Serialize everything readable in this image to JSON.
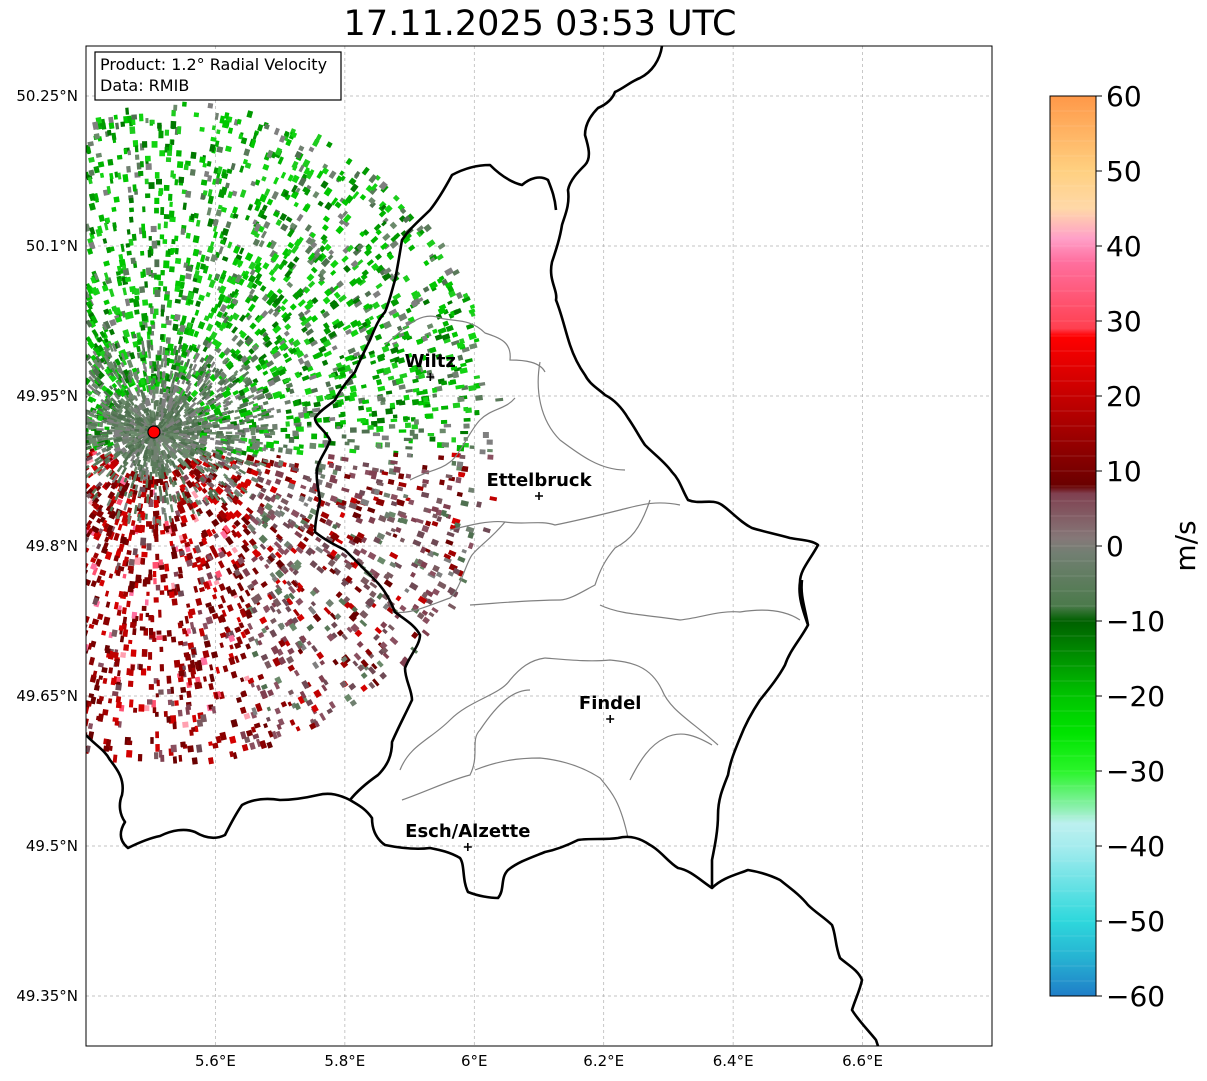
{
  "title": "17.11.2025 03:53 UTC",
  "info_box": {
    "line1": "Product: 1.2° Radial Velocity",
    "line2": "Data: RMIB"
  },
  "map_extent": {
    "lon": [
      5.4,
      6.8
    ],
    "lat": [
      49.3,
      50.3
    ]
  },
  "lat_ticks": [
    {
      "value": 50.25,
      "label": "50.25°N"
    },
    {
      "value": 50.1,
      "label": "50.1°N"
    },
    {
      "value": 49.95,
      "label": "49.95°N"
    },
    {
      "value": 49.8,
      "label": "49.8°N"
    },
    {
      "value": 49.65,
      "label": "49.65°N"
    },
    {
      "value": 49.5,
      "label": "49.5°N"
    },
    {
      "value": 49.35,
      "label": "49.35°N"
    }
  ],
  "lon_ticks": [
    {
      "value": 5.6,
      "label": "5.6°E"
    },
    {
      "value": 5.8,
      "label": "5.8°E"
    },
    {
      "value": 6.0,
      "label": "6°E"
    },
    {
      "value": 6.2,
      "label": "6.2°E"
    },
    {
      "value": 6.4,
      "label": "6.4°E"
    },
    {
      "value": 6.6,
      "label": "6.6°E"
    }
  ],
  "radar_site": {
    "lon": 5.505,
    "lat": 49.914
  },
  "cities": [
    {
      "name": "Wiltz",
      "lon": 5.932,
      "lat": 49.969
    },
    {
      "name": "Ettelbruck",
      "lon": 6.1,
      "lat": 49.85
    },
    {
      "name": "Findel",
      "lon": 6.21,
      "lat": 49.627
    },
    {
      "name": "Esch/Alzette",
      "lon": 5.99,
      "lat": 49.499
    }
  ],
  "colorbar": {
    "label": "m/s",
    "min": -60,
    "max": 60,
    "tick_labels": [
      {
        "value": 60,
        "label": "60"
      },
      {
        "value": 50,
        "label": "50"
      },
      {
        "value": 40,
        "label": "40"
      },
      {
        "value": 30,
        "label": "30"
      },
      {
        "value": 20,
        "label": "20"
      },
      {
        "value": 10,
        "label": "10"
      },
      {
        "value": 0,
        "label": "0"
      },
      {
        "value": -10,
        "label": "−10"
      },
      {
        "value": -20,
        "label": "−20"
      },
      {
        "value": -30,
        "label": "−30"
      },
      {
        "value": -40,
        "label": "−40"
      },
      {
        "value": -50,
        "label": "−50"
      },
      {
        "value": -60,
        "label": "−60"
      }
    ],
    "stops": [
      {
        "value": -60,
        "color": "#1f7ec8"
      },
      {
        "value": -55,
        "color": "#26b2d2"
      },
      {
        "value": -50,
        "color": "#2ed8dc"
      },
      {
        "value": -40,
        "color": "#a6ecee"
      },
      {
        "value": -37,
        "color": "#bcf0ef"
      },
      {
        "value": -35,
        "color": "#8ef0b0"
      },
      {
        "value": -30,
        "color": "#2af52a"
      },
      {
        "value": -25,
        "color": "#00e400"
      },
      {
        "value": -20,
        "color": "#00c400"
      },
      {
        "value": -10,
        "color": "#006000"
      },
      {
        "value": -8,
        "color": "#4b7a4b"
      },
      {
        "value": -1,
        "color": "#727f72"
      },
      {
        "value": 1,
        "color": "#857878"
      },
      {
        "value": 7,
        "color": "#804050"
      },
      {
        "value": 8,
        "color": "#6a0000"
      },
      {
        "value": 20,
        "color": "#c60000"
      },
      {
        "value": 28,
        "color": "#ff0000"
      },
      {
        "value": 29,
        "color": "#ff4050"
      },
      {
        "value": 38,
        "color": "#ff70a0"
      },
      {
        "value": 41,
        "color": "#ffa0c8"
      },
      {
        "value": 45,
        "color": "#ffd8a8"
      },
      {
        "value": 50,
        "color": "#ffd080"
      },
      {
        "value": 60,
        "color": "#ff9848"
      }
    ]
  },
  "colors": {
    "border": "#000000",
    "canton_lines": "#808080",
    "grid": "#b0b0b0",
    "radar_site": "#ff0000",
    "inbound_green": "#10b010",
    "outbound_red": "#a00000",
    "near_zero_gray": "#7f7f7f"
  },
  "icons": {
    "city_marker": "plus-marker-icon",
    "radar_marker": "radar-dot-icon"
  }
}
